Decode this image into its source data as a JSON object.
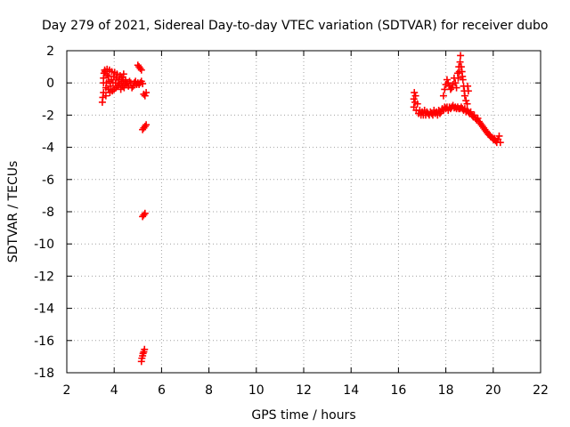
{
  "chart_data": {
    "type": "scatter",
    "title": "Day 279 of 2021, Sidereal Day-to-day VTEC variation (SDTVAR) for receiver dubo",
    "xlabel": "GPS time / hours",
    "ylabel": "SDTVAR / TECUs",
    "xlim": [
      2,
      22
    ],
    "ylim": [
      -18,
      2
    ],
    "xticks": [
      "2",
      "4",
      "6",
      "8",
      "10",
      "12",
      "14",
      "16",
      "18",
      "20",
      "22"
    ],
    "yticks": [
      "2",
      "0",
      "-2",
      "-4",
      "-6",
      "-8",
      "-10",
      "-12",
      "-14",
      "-16",
      "-18"
    ],
    "grid": true,
    "marker": "plus",
    "series": [
      {
        "name": "SDTVAR",
        "color": "#ff0000",
        "points": [
          [
            3.5,
            -1.2
          ],
          [
            3.52,
            -0.9
          ],
          [
            3.55,
            -0.6
          ],
          [
            3.55,
            0.0
          ],
          [
            3.55,
            0.3
          ],
          [
            3.57,
            0.6
          ],
          [
            3.6,
            0.8
          ],
          [
            3.62,
            0.7
          ],
          [
            3.65,
            -0.8
          ],
          [
            3.65,
            -0.3
          ],
          [
            3.68,
            0.0
          ],
          [
            3.7,
            0.5
          ],
          [
            3.7,
            0.85
          ],
          [
            3.75,
            0.4
          ],
          [
            3.75,
            -0.4
          ],
          [
            3.78,
            0.1
          ],
          [
            3.8,
            0.8
          ],
          [
            3.82,
            -0.6
          ],
          [
            3.85,
            -0.2
          ],
          [
            3.88,
            0.2
          ],
          [
            3.9,
            0.7
          ],
          [
            3.92,
            -0.5
          ],
          [
            3.95,
            0.0
          ],
          [
            3.98,
            0.4
          ],
          [
            4.0,
            -0.4
          ],
          [
            4.02,
            0.65
          ],
          [
            4.05,
            0.0
          ],
          [
            4.08,
            -0.3
          ],
          [
            4.1,
            0.3
          ],
          [
            4.12,
            0.55
          ],
          [
            4.15,
            -0.2
          ],
          [
            4.18,
            0.0
          ],
          [
            4.2,
            0.2
          ],
          [
            4.22,
            -0.1
          ],
          [
            4.25,
            0.45
          ],
          [
            4.28,
            -0.4
          ],
          [
            4.3,
            0.0
          ],
          [
            4.32,
            0.35
          ],
          [
            4.35,
            -0.2
          ],
          [
            4.38,
            0.1
          ],
          [
            4.4,
            0.55
          ],
          [
            4.42,
            -0.3
          ],
          [
            4.45,
            0.0
          ],
          [
            4.48,
            0.2
          ],
          [
            4.5,
            -0.1
          ],
          [
            4.55,
            0.0
          ],
          [
            4.6,
            -0.2
          ],
          [
            4.65,
            0.1
          ],
          [
            4.7,
            0.0
          ],
          [
            4.75,
            -0.3
          ],
          [
            4.8,
            -0.2
          ],
          [
            4.85,
            0.0
          ],
          [
            4.9,
            0.1
          ],
          [
            4.95,
            -0.1
          ],
          [
            5.0,
            0.0
          ],
          [
            5.05,
            -0.1
          ],
          [
            5.1,
            0.0
          ],
          [
            5.15,
            0.1
          ],
          [
            5.2,
            -0.05
          ],
          [
            5.0,
            1.1
          ],
          [
            5.05,
            1.0
          ],
          [
            5.1,
            0.9
          ],
          [
            5.15,
            0.8
          ],
          [
            5.25,
            -0.7
          ],
          [
            5.3,
            -0.8
          ],
          [
            5.35,
            -0.6
          ],
          [
            5.2,
            -2.9
          ],
          [
            5.25,
            -2.8
          ],
          [
            5.3,
            -2.7
          ],
          [
            5.35,
            -2.6
          ],
          [
            5.2,
            -8.3
          ],
          [
            5.25,
            -8.2
          ],
          [
            5.3,
            -8.1
          ],
          [
            5.15,
            -17.3
          ],
          [
            5.17,
            -17.1
          ],
          [
            5.2,
            -16.95
          ],
          [
            5.22,
            -16.8
          ],
          [
            5.25,
            -16.7
          ],
          [
            5.28,
            -16.55
          ],
          [
            16.65,
            -1.5
          ],
          [
            16.65,
            -1.0
          ],
          [
            16.67,
            -0.6
          ],
          [
            16.7,
            -1.2
          ],
          [
            16.72,
            -0.8
          ],
          [
            16.75,
            -1.7
          ],
          [
            16.8,
            -1.3
          ],
          [
            16.85,
            -1.9
          ],
          [
            16.9,
            -1.7
          ],
          [
            16.95,
            -2.0
          ],
          [
            17.0,
            -1.8
          ],
          [
            17.05,
            -2.0
          ],
          [
            17.1,
            -1.7
          ],
          [
            17.15,
            -2.0
          ],
          [
            17.2,
            -1.8
          ],
          [
            17.25,
            -1.9
          ],
          [
            17.3,
            -2.0
          ],
          [
            17.35,
            -1.8
          ],
          [
            17.4,
            -1.9
          ],
          [
            17.45,
            -2.0
          ],
          [
            17.5,
            -1.7
          ],
          [
            17.55,
            -1.9
          ],
          [
            17.6,
            -1.8
          ],
          [
            17.65,
            -2.0
          ],
          [
            17.7,
            -1.7
          ],
          [
            17.75,
            -1.9
          ],
          [
            17.8,
            -1.8
          ],
          [
            17.85,
            -1.6
          ],
          [
            17.9,
            -1.7
          ],
          [
            17.95,
            -1.5
          ],
          [
            18.0,
            -1.6
          ],
          [
            18.05,
            -1.5
          ],
          [
            18.1,
            -1.7
          ],
          [
            18.15,
            -1.5
          ],
          [
            18.2,
            -1.6
          ],
          [
            18.25,
            -1.5
          ],
          [
            18.3,
            -1.4
          ],
          [
            18.35,
            -1.55
          ],
          [
            18.4,
            -1.5
          ],
          [
            18.45,
            -1.6
          ],
          [
            18.5,
            -1.5
          ],
          [
            18.55,
            -1.6
          ],
          [
            18.6,
            -1.6
          ],
          [
            18.65,
            -1.5
          ],
          [
            18.7,
            -1.6
          ],
          [
            18.75,
            -1.7
          ],
          [
            18.8,
            -1.6
          ],
          [
            18.85,
            -1.8
          ],
          [
            18.9,
            -1.7
          ],
          [
            18.95,
            -1.8
          ],
          [
            19.0,
            -1.9
          ],
          [
            19.05,
            -1.8
          ],
          [
            19.1,
            -2.0
          ],
          [
            19.15,
            -2.1
          ],
          [
            19.2,
            -2.0
          ],
          [
            19.25,
            -2.2
          ],
          [
            19.3,
            -2.3
          ],
          [
            19.35,
            -2.2
          ],
          [
            19.4,
            -2.4
          ],
          [
            19.45,
            -2.5
          ],
          [
            19.5,
            -2.6
          ],
          [
            19.55,
            -2.7
          ],
          [
            19.6,
            -2.8
          ],
          [
            19.65,
            -2.9
          ],
          [
            19.7,
            -3.0
          ],
          [
            19.75,
            -3.1
          ],
          [
            19.8,
            -3.2
          ],
          [
            19.85,
            -3.25
          ],
          [
            19.9,
            -3.35
          ],
          [
            19.95,
            -3.4
          ],
          [
            20.0,
            -3.5
          ],
          [
            20.05,
            -3.45
          ],
          [
            20.1,
            -3.6
          ],
          [
            20.15,
            -3.7
          ],
          [
            20.2,
            -3.5
          ],
          [
            20.25,
            -3.3
          ],
          [
            20.3,
            -3.7
          ],
          [
            17.9,
            -0.8
          ],
          [
            17.95,
            -0.4
          ],
          [
            18.0,
            -0.1
          ],
          [
            18.05,
            0.2
          ],
          [
            18.1,
            0.0
          ],
          [
            18.15,
            -0.2
          ],
          [
            18.2,
            -0.4
          ],
          [
            18.25,
            -0.3
          ],
          [
            18.3,
            -0.1
          ],
          [
            18.35,
            0.3
          ],
          [
            18.4,
            0.0
          ],
          [
            18.45,
            -0.3
          ],
          [
            18.5,
            0.6
          ],
          [
            18.52,
            0.3
          ],
          [
            18.55,
            1.0
          ],
          [
            18.57,
            0.7
          ],
          [
            18.6,
            1.3
          ],
          [
            18.62,
            1.7
          ],
          [
            18.65,
            1.0
          ],
          [
            18.68,
            0.7
          ],
          [
            18.7,
            0.4
          ],
          [
            18.72,
            0.2
          ],
          [
            18.75,
            -0.2
          ],
          [
            18.78,
            -0.5
          ],
          [
            18.8,
            -0.8
          ],
          [
            18.85,
            -1.1
          ],
          [
            18.9,
            -1.3
          ],
          [
            18.92,
            -0.2
          ],
          [
            18.95,
            -0.5
          ]
        ]
      }
    ]
  }
}
